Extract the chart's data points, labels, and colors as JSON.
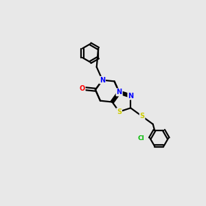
{
  "bg_color": "#e8e8e8",
  "bond_color": "#000000",
  "atom_colors": {
    "N": "#0000ff",
    "O": "#ff0000",
    "S": "#cccc00",
    "Cl": "#00bb00",
    "C": "#000000"
  },
  "figsize": [
    3.0,
    3.0
  ],
  "dpi": 100,
  "lw": 1.6,
  "fs": 7.0
}
